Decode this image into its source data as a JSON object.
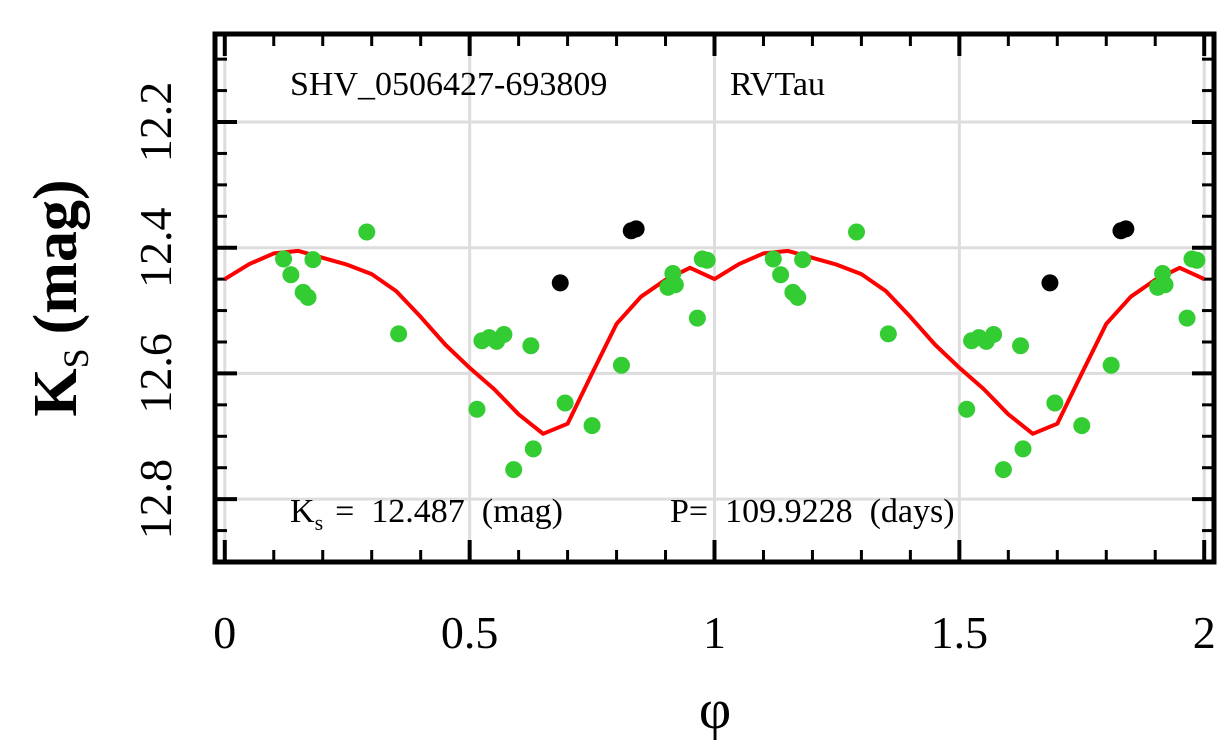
{
  "chart_data": {
    "type": "scatter",
    "title": "",
    "star_id": "SHV_0506427-693809",
    "var_type": "RVTau",
    "xlabel": "φ",
    "ylabel": {
      "main": "K",
      "sub": "S",
      "unit": "(mag)"
    },
    "xlim": [
      -0.02,
      2.02
    ],
    "ylim": [
      12.9,
      12.06
    ],
    "y_inverted": true,
    "grid": true,
    "xticks": [
      0,
      0.5,
      1,
      1.5,
      2
    ],
    "xtick_labels": [
      "0",
      "0.5",
      "1",
      "1.5",
      "2"
    ],
    "yticks": [
      12.2,
      12.4,
      12.6,
      12.8
    ],
    "ytick_labels": [
      "12.2",
      "12.4",
      "12.6",
      "12.8"
    ],
    "footer": {
      "ks_symbol": "K",
      "ks_sub": "s",
      "ks_value_text": "=  12.487  (mag)",
      "period_text": "P=  109.9228  (days)"
    },
    "series": [
      {
        "name": "observations",
        "color": "#33cc33",
        "kind": "points",
        "x": [
          0.12,
          0.135,
          0.16,
          0.17,
          0.18,
          0.29,
          0.355,
          0.515,
          0.525,
          0.54,
          0.555,
          0.57,
          0.59,
          0.625,
          0.63,
          0.695,
          0.75,
          0.81,
          0.905,
          0.915,
          0.92,
          0.965,
          0.975,
          0.985,
          1.12,
          1.135,
          1.16,
          1.17,
          1.18,
          1.29,
          1.355,
          1.515,
          1.525,
          1.54,
          1.555,
          1.57,
          1.59,
          1.625,
          1.63,
          1.695,
          1.75,
          1.81,
          1.905,
          1.915,
          1.92,
          1.965,
          1.975,
          1.985
        ],
        "y": [
          12.418,
          12.443,
          12.471,
          12.479,
          12.419,
          12.375,
          12.537,
          12.657,
          12.548,
          12.543,
          12.549,
          12.538,
          12.753,
          12.556,
          12.72,
          12.647,
          12.683,
          12.587,
          12.463,
          12.441,
          12.459,
          12.512,
          12.418,
          12.42,
          12.418,
          12.443,
          12.471,
          12.479,
          12.419,
          12.375,
          12.537,
          12.657,
          12.548,
          12.543,
          12.549,
          12.538,
          12.753,
          12.556,
          12.72,
          12.647,
          12.683,
          12.587,
          12.463,
          12.441,
          12.459,
          12.512,
          12.418,
          12.42
        ]
      },
      {
        "name": "excluded",
        "color": "#000000",
        "kind": "points",
        "x": [
          0.685,
          0.83,
          0.84,
          1.685,
          1.83,
          1.84
        ],
        "y": [
          12.456,
          12.373,
          12.37,
          12.456,
          12.373,
          12.37
        ]
      },
      {
        "name": "fit",
        "color": "#ff0000",
        "kind": "line",
        "x": [
          0.0,
          0.05,
          0.1,
          0.15,
          0.2,
          0.25,
          0.3,
          0.35,
          0.4,
          0.45,
          0.5,
          0.55,
          0.6,
          0.65,
          0.7,
          0.75,
          0.8,
          0.85,
          0.9,
          0.95,
          1.0,
          1.05,
          1.1,
          1.15,
          1.2,
          1.25,
          1.3,
          1.35,
          1.4,
          1.45,
          1.5,
          1.55,
          1.6,
          1.65,
          1.7,
          1.75,
          1.8,
          1.85,
          1.9,
          1.95,
          2.0
        ],
        "y": [
          12.45,
          12.426,
          12.409,
          12.405,
          12.416,
          12.427,
          12.442,
          12.469,
          12.51,
          12.554,
          12.591,
          12.625,
          12.665,
          12.696,
          12.68,
          12.6,
          12.521,
          12.478,
          12.451,
          12.432,
          12.45,
          12.426,
          12.409,
          12.405,
          12.416,
          12.427,
          12.442,
          12.469,
          12.51,
          12.554,
          12.591,
          12.625,
          12.665,
          12.696,
          12.68,
          12.6,
          12.521,
          12.478,
          12.451,
          12.432,
          12.45
        ]
      }
    ]
  }
}
